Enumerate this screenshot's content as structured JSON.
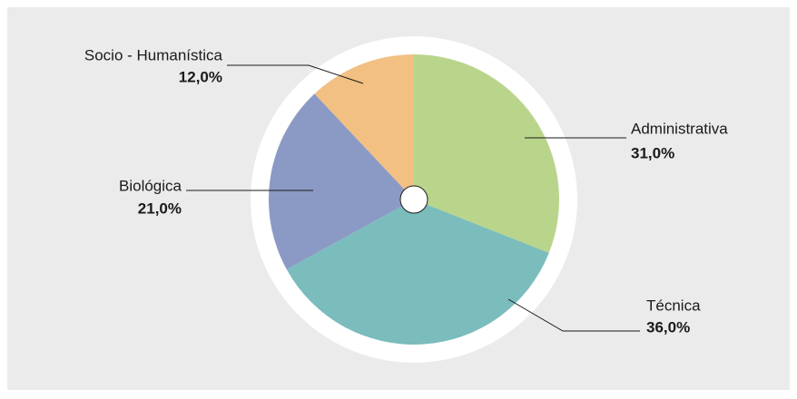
{
  "chart_data": {
    "type": "pie",
    "categories": [
      "Administrativa",
      "Técnica",
      "Biológica",
      "Socio - Humanística"
    ],
    "values": [
      31,
      36,
      21,
      12
    ],
    "value_labels": [
      "31,0%",
      "36,0%",
      "21,0%",
      "12,0%"
    ],
    "colors": [
      "#b9d58c",
      "#7bbcbd",
      "#8b9ac4",
      "#f2c083"
    ]
  }
}
